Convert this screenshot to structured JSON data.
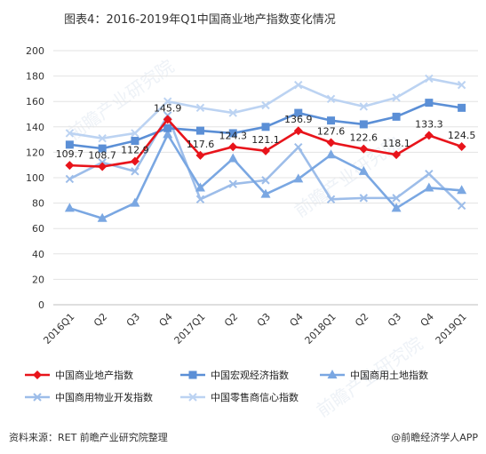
{
  "title": "图表4：2016-2019年Q1中国商业地产指数变化情况",
  "source_text": "资料来源：RET  前瞻产业研究院整理",
  "brand_text": "@前瞻经济学人APP",
  "watermark_text": "前瞻产业研究院",
  "chart_data": {
    "type": "line",
    "categories": [
      "2016Q1",
      "Q2",
      "Q3",
      "Q4",
      "2017Q1",
      "Q2",
      "Q3",
      "Q4",
      "2018Q1",
      "Q2",
      "Q3",
      "Q4",
      "2019Q1"
    ],
    "ylim": [
      0,
      200
    ],
    "yticks": [
      0,
      20,
      40,
      60,
      80,
      100,
      120,
      140,
      160,
      180,
      200
    ],
    "grid": "horizontal",
    "legend_position": "bottom",
    "series": [
      {
        "name": "中国商业地产指数",
        "color": "#e8141b",
        "marker": "diamond",
        "show_labels": true,
        "values": [
          109.7,
          108.7,
          112.9,
          145.9,
          117.6,
          124.3,
          121.1,
          136.9,
          127.6,
          122.6,
          118.1,
          133.3,
          124.5
        ]
      },
      {
        "name": "中国宏观经济指数",
        "color": "#5b8fd6",
        "marker": "square",
        "show_labels": false,
        "values": [
          126,
          123,
          129,
          139,
          137,
          135,
          140,
          151,
          145,
          142,
          148,
          159,
          155
        ]
      },
      {
        "name": "中国商用土地指数",
        "color": "#7aa7e2",
        "marker": "triangle",
        "show_labels": false,
        "values": [
          76,
          68,
          80,
          134,
          92,
          115,
          87,
          99,
          118,
          105,
          76,
          92,
          90
        ]
      },
      {
        "name": "中国商用物业开发指数",
        "color": "#9dbde9",
        "marker": "x",
        "show_labels": false,
        "values": [
          99,
          112,
          105,
          149,
          83,
          95,
          98,
          124,
          83,
          84,
          84,
          103,
          78
        ]
      },
      {
        "name": "中国零售商信心指数",
        "color": "#bcd3f2",
        "marker": "x",
        "show_labels": false,
        "values": [
          135,
          131,
          135,
          160,
          155,
          151,
          157,
          173,
          162,
          156,
          163,
          178,
          173
        ]
      }
    ]
  }
}
